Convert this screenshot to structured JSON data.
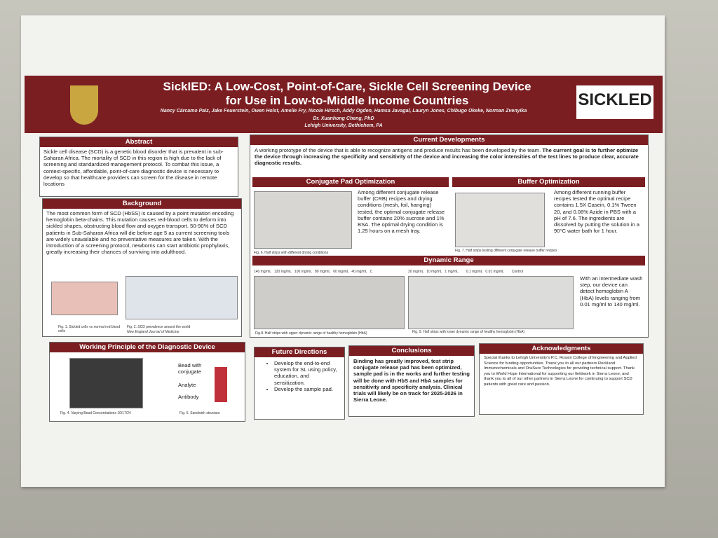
{
  "header": {
    "title_line1": "SickIED: A Low-Cost, Point-of-Care, Sickle Cell Screening Device",
    "title_line2": "for Use in Low-to-Middle Income Countries",
    "authors": "Nancy Cárcamo Paiz, Jake Feuerstein, Owen Holst, Amelie Fry, Nicole Hirsch, Addy Ogden, Hamsa Javagal, Lauryn Jones, Chibugo Okeke, Norman Zvenyika",
    "advisor": "Dr. Xuanhong Cheng, PhD",
    "affiliation": "Lehigh University, Bethlehem, PA",
    "logo": "SICKLED"
  },
  "abstract": {
    "heading": "Abstract",
    "text": "Sickle cell disease (SCD) is a genetic blood disorder that is prevalent in sub-Saharan Africa. The mortality of SCD in this region is high due to the lack of screening and standardized management protocol. To combat this issue, a context-specific, affordable, point-of-care diagnostic device is necessary to develop so that healthcare providers can screen for the disease in remote locations"
  },
  "background": {
    "heading": "Background",
    "text": "The most common form of SCD (HbSS) is caused by a point mutation encoding hemoglobin beta-chains. This mutation causes red-blood cells to deform into sickled shapes, obstructing blood flow and oxygen transport. 50-90% of SCD patients in Sub-Saharan Africa will die before age 5 as current screening tools are widely unavailable and no preventative measures are taken. With the introduction of a screening protocol, newborns can start antibiotic prophylaxis, greatly increasing their chances of surviving into adulthood.",
    "fig1": "Fig. 1. Sickled cells vs normal red blood cells",
    "fig2": "Fig. 2. SCD prevalence around the world",
    "fig2_source": "New England Journal of Medicine"
  },
  "working_principle": {
    "heading": "Working Principle of the Diagnostic Device",
    "label_bead": "Bead with conjugate",
    "label_analyte": "Analyte",
    "label_antibody": "Antibody",
    "fig4": "Fig. 4. Varying Bead Concentrations 10/17/24",
    "fig5": "Fig. 5. Sandwich structure"
  },
  "current_developments": {
    "heading": "Current Developments",
    "text": "A working prototype of the device that is able to recognize antigens and produce results has been developed by the team.",
    "goal": "The current goal is to further optimize the device through increasing the specificity and sensitivity of the device and increasing the color intensities of the test lines to produce clear, accurate diagnostic results."
  },
  "conjugate_pad": {
    "heading": "Conjugate Pad Optimization",
    "text": "Among different conjugate release buffer (CRB) recipes and drying conditions (mesh, foil, hanging) tested, the optimal conjugate release buffer contains 20% sucrose and 1% BSA. The optimal drying condition is 1.25 hours on a mesh tray.",
    "caption": "Fig. 6. Half strips with different drying conditions"
  },
  "buffer": {
    "heading": "Buffer Optimization",
    "text": "Among different running buffer recipes tested the optimal recipe contains 1.5X Casein, 0.1% Tween 20, and 0.08% Azide in PBS with a pH of 7.6. The ingredients are dissolved by putting the solution in a 90°C water bath for 1 hour.",
    "caption": "Fig. 7. Half strips testing different conjugate release buffer recipes"
  },
  "dynamic_range": {
    "heading": "Dynamic Range",
    "text": "With an intermediate wash step, our device can detect hemoglobin A (HbA) levels ranging from 0.01 mg/ml to 140 mg/ml.",
    "fig8": "Fig.8. Half strips with upper dynamic range of healthy hemoglobin (HbA)",
    "fig9": "Fig. 9. Half strips with lower dynamic range of healthy hemoglobin (HbA)",
    "conc_upper": "140 mg/mL   120 mg/mL   100 mg/mL   80 mg/mL   60 mg/mL   40 mg/mL   C",
    "conc_lower": "20 mg/mL   10 mg/mL   1 mg/mL        0.1 mg/mL   0.01 mg/mL        Control"
  },
  "future_directions": {
    "heading": "Future Directions",
    "items": [
      "Develop the end-to-end system for SL using policy, education, and sensitization.",
      "Develop the sample pad."
    ]
  },
  "conclusions": {
    "heading": "Conclusions",
    "text": "Binding has greatly improved, test strip conjugate release pad has been optimized, sample pad is in the works and further testing will be done with HbS and HbA samples for sensitivity and specificity analysis. Clinical trials will likely be on track for 2025-2026 in Sierra Leone."
  },
  "acknowledgments": {
    "heading": "Acknowledgments",
    "text": "Special thanks to Lehigh University's P.C. Rossin College of Engineering and Applied Science for funding opportunities. Thank you to all our partners Rockland Immunochemicals and OraSure Technologies for providing technical support. Thank you to World Hope International for supporting our fieldwork in Sierra Leone, and thank you to all of our other partners in Sierra Leone for continuing to support SCD patients with great care and passion."
  }
}
